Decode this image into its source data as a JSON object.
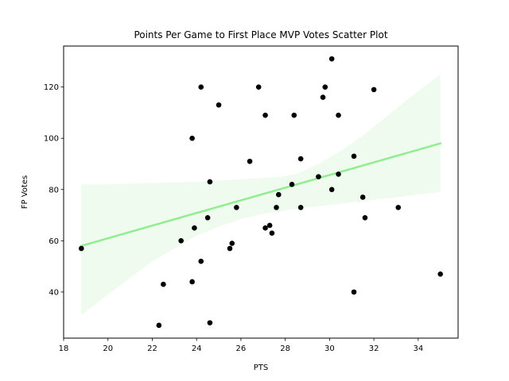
{
  "chart_data": {
    "type": "scatter",
    "title": "Points Per Game to First Place MVP Votes Scatter Plot",
    "xlabel": "PTS",
    "ylabel": "FP Votes",
    "xlim": [
      18,
      35.8
    ],
    "ylim": [
      22,
      136
    ],
    "xticks": [
      18,
      20,
      22,
      24,
      26,
      28,
      30,
      32,
      34
    ],
    "yticks": [
      40,
      60,
      80,
      100,
      120
    ],
    "grid": false,
    "legend": "none",
    "colors": {
      "points": "#000000",
      "regression_line": "#90ee90",
      "confidence_band": "#eefbee"
    },
    "series": [
      {
        "points": [
          {
            "x": 18.8,
            "y": 57
          },
          {
            "x": 22.3,
            "y": 27
          },
          {
            "x": 22.5,
            "y": 43
          },
          {
            "x": 23.3,
            "y": 60
          },
          {
            "x": 23.8,
            "y": 44
          },
          {
            "x": 23.8,
            "y": 100
          },
          {
            "x": 23.9,
            "y": 65
          },
          {
            "x": 24.2,
            "y": 52
          },
          {
            "x": 24.2,
            "y": 120
          },
          {
            "x": 24.5,
            "y": 69
          },
          {
            "x": 24.6,
            "y": 28
          },
          {
            "x": 24.6,
            "y": 83
          },
          {
            "x": 25.0,
            "y": 113
          },
          {
            "x": 25.5,
            "y": 57
          },
          {
            "x": 25.6,
            "y": 59
          },
          {
            "x": 25.8,
            "y": 73
          },
          {
            "x": 26.4,
            "y": 91
          },
          {
            "x": 26.8,
            "y": 120
          },
          {
            "x": 27.1,
            "y": 65
          },
          {
            "x": 27.1,
            "y": 109
          },
          {
            "x": 27.3,
            "y": 66
          },
          {
            "x": 27.4,
            "y": 63
          },
          {
            "x": 27.6,
            "y": 73
          },
          {
            "x": 27.7,
            "y": 78
          },
          {
            "x": 28.3,
            "y": 82
          },
          {
            "x": 28.4,
            "y": 109
          },
          {
            "x": 28.7,
            "y": 73
          },
          {
            "x": 28.7,
            "y": 92
          },
          {
            "x": 29.5,
            "y": 85
          },
          {
            "x": 29.7,
            "y": 116
          },
          {
            "x": 29.8,
            "y": 120
          },
          {
            "x": 30.1,
            "y": 80
          },
          {
            "x": 30.1,
            "y": 131
          },
          {
            "x": 30.4,
            "y": 86
          },
          {
            "x": 30.4,
            "y": 109
          },
          {
            "x": 31.1,
            "y": 40
          },
          {
            "x": 31.1,
            "y": 93
          },
          {
            "x": 31.5,
            "y": 77
          },
          {
            "x": 31.6,
            "y": 69
          },
          {
            "x": 32.0,
            "y": 119
          },
          {
            "x": 33.1,
            "y": 73
          },
          {
            "x": 35.0,
            "y": 47
          }
        ]
      }
    ],
    "regression": {
      "x": [
        18.8,
        35.0
      ],
      "y": [
        58,
        98
      ],
      "band": {
        "x": [
          18.8,
          20.0,
          22.0,
          24.0,
          25.0,
          26.0,
          27.0,
          27.8,
          28.5,
          29.5,
          30.5,
          31.5,
          32.5,
          33.5,
          35.0
        ],
        "upper": [
          82,
          82,
          82.5,
          83,
          83.5,
          84,
          84.5,
          85,
          86,
          90,
          95,
          101,
          108,
          115,
          125
        ],
        "lower": [
          31,
          39,
          52,
          62,
          65.5,
          68.5,
          70.5,
          71.5,
          72.5,
          73.5,
          74.5,
          75.5,
          76.5,
          77.5,
          79
        ]
      }
    }
  }
}
